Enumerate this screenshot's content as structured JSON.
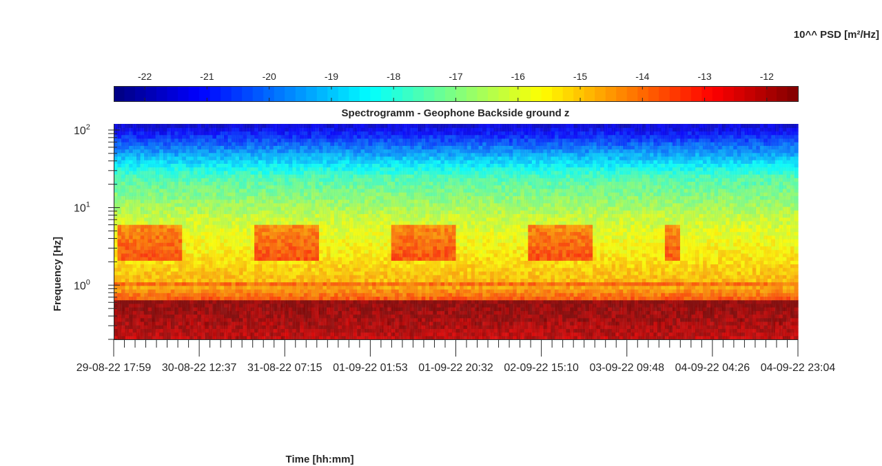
{
  "chart_data": {
    "type": "heatmap",
    "title": "Spectrogramm - Geophone Backside ground z",
    "xlabel": "Time [hh:mm]",
    "ylabel": "Frequency [Hz]",
    "yscale": "log",
    "ylim": [
      0.2,
      120
    ],
    "y_ticks": [
      {
        "value": 1,
        "mantissa": "10",
        "exp": "0"
      },
      {
        "value": 10,
        "mantissa": "10",
        "exp": "1"
      },
      {
        "value": 100,
        "mantissa": "10",
        "exp": "2"
      }
    ],
    "x_tick_labels": [
      "29-08-22  17:59",
      "30-08-22  12:37",
      "31-08-22  07:15",
      "01-09-22  01:53",
      "01-09-22  20:32",
      "02-09-22  15:10",
      "03-09-22  09:48",
      "04-09-22  04:26",
      "04-09-22  23:04"
    ],
    "colorbar": {
      "label": "10^^ PSD [m²/Hz]",
      "range": [
        -22.5,
        -11.5
      ],
      "ticks": [
        "-22",
        "-21",
        "-20",
        "-19",
        "-18",
        "-17",
        "-16",
        "-15",
        "-14",
        "-13",
        "-12"
      ],
      "colormap": "jet",
      "location": "top"
    },
    "features": {
      "daily_activity_bands_hz": [
        2,
        6
      ],
      "activity_days": 5,
      "narrowband_line_hz": 1.0,
      "strong_low_frequency_hz": [
        0.2,
        0.7
      ]
    }
  }
}
